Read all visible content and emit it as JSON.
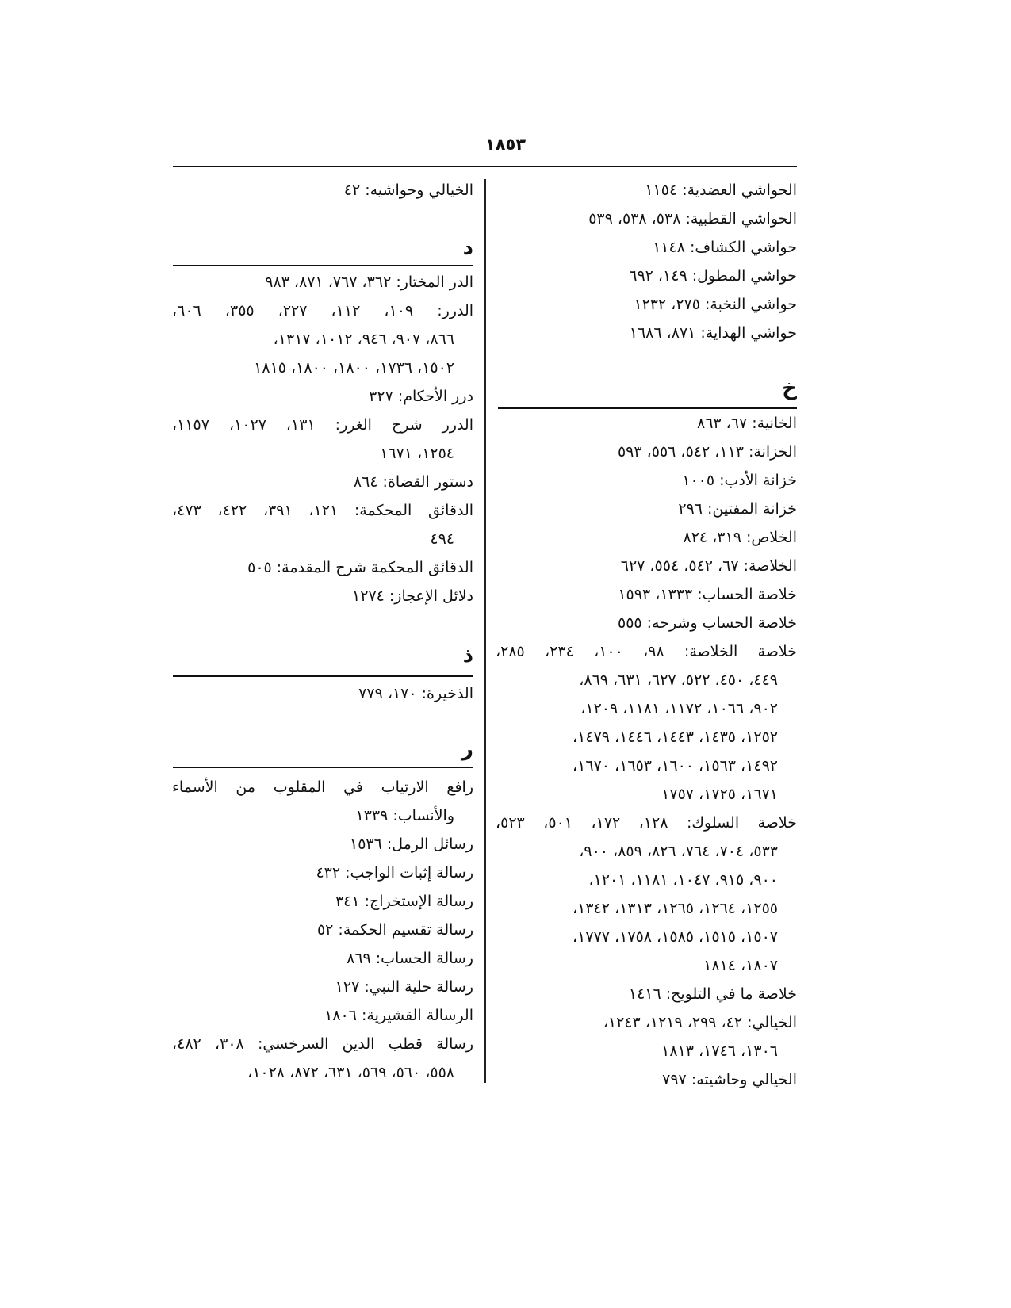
{
  "page_number": "١٨٥٣",
  "right_column": {
    "top_entries": [
      {
        "lines": [
          "الحواشي العضدية: ١١٥٤"
        ]
      },
      {
        "lines": [
          "الحواشي القطبية: ٥٣٨، ٥٣٨، ٥٣٩"
        ]
      },
      {
        "lines": [
          "حواشي الكشاف: ١١٤٨"
        ]
      },
      {
        "lines": [
          "حواشي المطول: ١٤٩، ٦٩٢"
        ]
      },
      {
        "lines": [
          "حواشي النخبة: ٢٧٥، ١٢٣٢"
        ]
      },
      {
        "lines": [
          "حواشي الهداية: ٨٧١، ١٦٨٦"
        ]
      }
    ],
    "section_kha": {
      "letter": "خ",
      "entries": [
        {
          "lines": [
            "الخانية: ٦٧، ٨٦٣"
          ]
        },
        {
          "lines": [
            "الخزانة: ١١٣، ٥٤٢، ٥٥٦، ٥٩٣"
          ]
        },
        {
          "lines": [
            "خزانة الأدب: ١٠٠٥"
          ]
        },
        {
          "lines": [
            "خزانة المفتين: ٢٩٦"
          ]
        },
        {
          "lines": [
            "الخلاص: ٣١٩، ٨٢٤"
          ]
        },
        {
          "lines": [
            "الخلاصة: ٦٧، ٥٤٢، ٥٥٤، ٦٢٧"
          ]
        },
        {
          "lines": [
            "خلاصة الحساب: ١٣٣٣، ١٥٩٣"
          ]
        },
        {
          "lines": [
            "خلاصة الحساب وشرحه: ٥٥٥"
          ]
        },
        {
          "lines": [
            "خلاصة الخلاصة: ٩٨، ١٠٠، ٢٣٤، ٢٨٥،",
            "٤٤٩، ٤٥٠، ٥٢٢، ٦٢٧، ٦٣١، ٨٦٩،",
            "٩٠٢، ١٠٦٦، ١١٧٢، ١١٨١، ١٢٠٩،",
            "١٢٥٢، ١٤٣٥، ١٤٤٣، ١٤٤٦، ١٤٧٩،",
            "١٤٩٢، ١٥٦٣، ١٦٠٠، ١٦٥٣، ١٦٧٠،",
            "١٦٧١، ١٧٢٥، ١٧٥٧"
          ]
        },
        {
          "lines": [
            "خلاصة السلوك: ١٢٨، ١٧٢، ٥٠١، ٥٢٣،",
            "٥٣٣، ٧٠٤، ٧٦٤، ٨٢٦، ٨٥٩، ٩٠٠،",
            "٩٠٠، ٩١٥، ١٠٤٧، ١١٨١، ١٢٠١،",
            "١٢٥٥، ١٢٦٤، ١٢٦٥، ١٣١٣، ١٣٤٢،",
            "١٥٠٧، ١٥١٥، ١٥٨٥، ١٧٥٨، ١٧٧٧،",
            "١٨٠٧، ١٨١٤"
          ]
        },
        {
          "lines": [
            "خلاصة ما في التلويح: ١٤١٦"
          ]
        },
        {
          "lines": [
            "الخيالي: ٤٢، ٢٩٩، ١٢١٩، ١٢٤٣،",
            "١٣٠٦، ١٧٤٦، ١٨١٣"
          ]
        },
        {
          "lines": [
            "الخيالي وحاشيته: ٧٩٧"
          ]
        }
      ]
    }
  },
  "left_column": {
    "top_entries": [
      {
        "lines": [
          "الخيالي وحواشيه: ٤٢"
        ]
      }
    ],
    "section_dal": {
      "letter": "د",
      "entries": [
        {
          "lines": [
            "الدر المختار: ٣٦٢، ٧٦٧، ٨٧١، ٩٨٣"
          ]
        },
        {
          "lines": [
            "الدرر: ١٠٩، ١١٢، ٢٢٧، ٣٥٥، ٦٠٦،",
            "٨٦٦، ٩٠٧، ٩٤٦، ١٠١٢، ١٣١٧،",
            "١٥٠٢، ١٧٣٦، ١٨٠٠، ١٨٠٠، ١٨١٥"
          ]
        },
        {
          "lines": [
            "درر الأحكام: ٣٢٧"
          ]
        },
        {
          "lines": [
            "الدرر شرح الغرر: ١٣١، ١٠٢٧، ١١٥٧،",
            "١٢٥٤، ١٦٧١"
          ]
        },
        {
          "lines": [
            "دستور القضاة: ٨٦٤"
          ]
        },
        {
          "lines": [
            "الدقائق المحكمة: ١٢١، ٣٩١، ٤٢٢، ٤٧٣،",
            "٤٩٤"
          ]
        },
        {
          "lines": [
            "الدقائق المحكمة شرح المقدمة: ٥٠٥"
          ]
        },
        {
          "lines": [
            "دلائل الإعجاز: ١٢٧٤"
          ]
        }
      ]
    },
    "section_dhal": {
      "letter": "ذ",
      "entries": [
        {
          "lines": [
            "الذخيرة: ١٧٠، ٧٧٩"
          ]
        }
      ]
    },
    "section_ra": {
      "letter": "ر",
      "entries": [
        {
          "lines": [
            "رافع الارتياب في المقلوب من الأسماء",
            "والأنساب: ١٣٣٩"
          ]
        },
        {
          "lines": [
            "رسائل الرمل: ١٥٣٦"
          ]
        },
        {
          "lines": [
            "رسالة إثبات الواجب: ٤٣٢"
          ]
        },
        {
          "lines": [
            "رسالة الإستخراج: ٣٤١"
          ]
        },
        {
          "lines": [
            "رسالة تقسيم الحكمة: ٥٢"
          ]
        },
        {
          "lines": [
            "رسالة الحساب: ٨٦٩"
          ]
        },
        {
          "lines": [
            "رسالة حلية النبي: ١٢٧"
          ]
        },
        {
          "lines": [
            "الرسالة القشيرية: ١٨٠٦"
          ]
        },
        {
          "lines": [
            "رسالة قطب الدين السرخسي: ٣٠٨، ٤٨٢،",
            "٥٥٨، ٥٦٠، ٥٦٩، ٦٣١، ٨٧٢، ١٠٢٨،"
          ]
        }
      ]
    }
  }
}
